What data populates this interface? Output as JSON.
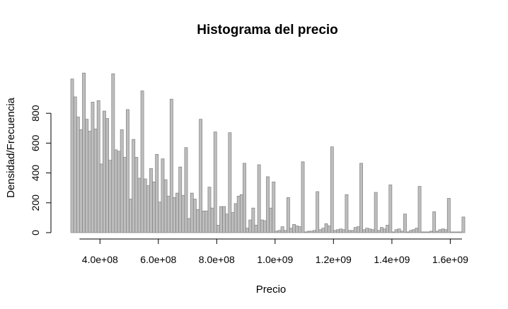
{
  "chart_data": {
    "type": "bar",
    "title": "Histograma del precio",
    "xlabel": "Precio",
    "ylabel": "Densidad/Frecuencia",
    "xlim": [
      300000000,
      1650000000
    ],
    "ylim": [
      0,
      1000
    ],
    "bin_width": 10000000,
    "x_ticks": [
      400000000,
      600000000,
      800000000,
      1000000000,
      1200000000,
      1400000000,
      1600000000
    ],
    "x_tick_labels": [
      "4.0e+08",
      "6.0e+08",
      "8.0e+08",
      "1.0e+09",
      "1.2e+09",
      "1.4e+09",
      "1.6e+09"
    ],
    "y_ticks": [
      0,
      200,
      400,
      600,
      800
    ],
    "y_tick_labels": [
      "0",
      "200",
      "400",
      "600",
      "800"
    ],
    "bar_color": "#bebebe",
    "bar_border": "#808080",
    "grid": false,
    "values": [
      1030,
      910,
      775,
      690,
      1070,
      760,
      680,
      875,
      695,
      885,
      460,
      815,
      765,
      485,
      1065,
      555,
      545,
      690,
      505,
      825,
      225,
      625,
      505,
      365,
      950,
      360,
      315,
      430,
      340,
      525,
      205,
      495,
      355,
      245,
      895,
      235,
      265,
      440,
      250,
      570,
      95,
      265,
      225,
      155,
      760,
      145,
      145,
      305,
      165,
      675,
      50,
      175,
      175,
      125,
      670,
      135,
      195,
      245,
      255,
      465,
      30,
      85,
      165,
      50,
      455,
      85,
      80,
      375,
      165,
      340,
      10,
      15,
      40,
      15,
      235,
      30,
      55,
      45,
      40,
      475,
      5,
      10,
      10,
      15,
      275,
      20,
      30,
      60,
      45,
      575,
      15,
      20,
      25,
      20,
      255,
      15,
      15,
      35,
      40,
      465,
      20,
      30,
      25,
      20,
      270,
      15,
      35,
      25,
      50,
      320,
      5,
      20,
      25,
      10,
      125,
      5,
      15,
      20,
      30,
      310,
      5,
      5,
      5,
      10,
      140,
      10,
      20,
      25,
      20,
      230,
      5,
      5,
      5,
      5,
      105
    ]
  }
}
